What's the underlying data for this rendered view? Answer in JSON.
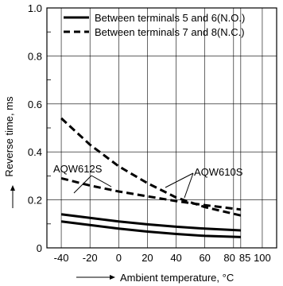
{
  "chart_data": {
    "type": "line",
    "xlabel": "Ambient temperature, °C",
    "ylabel": "Reverse time, ms",
    "xlim": [
      -50,
      110
    ],
    "ylim": [
      0,
      1.0
    ],
    "x_ticks": [
      -40,
      -20,
      0,
      20,
      40,
      60,
      80,
      85,
      100
    ],
    "x_tick_labels": [
      "-40",
      "-20",
      "0",
      "20",
      "40",
      "60",
      "80",
      "85",
      "100"
    ],
    "y_ticks": [
      0,
      0.2,
      0.4,
      0.6,
      0.8,
      1.0
    ],
    "y_tick_labels": [
      "0",
      "0.2",
      "0.4",
      "0.6",
      "0.8",
      "1.0"
    ],
    "grid": true,
    "legend_position": "top",
    "series": [
      {
        "name": "Between terminals 5 and 6(N.O.)",
        "style": "solid",
        "label": "AQW612S",
        "x": [
          -40,
          -20,
          0,
          20,
          40,
          60,
          85
        ],
        "y": [
          0.14,
          0.125,
          0.11,
          0.098,
          0.088,
          0.08,
          0.073
        ]
      },
      {
        "name": "Between terminals 5 and 6(N.O.)",
        "style": "solid",
        "label": "AQW610S",
        "x": [
          -40,
          -20,
          0,
          20,
          40,
          60,
          85
        ],
        "y": [
          0.11,
          0.095,
          0.08,
          0.068,
          0.058,
          0.05,
          0.045
        ]
      },
      {
        "name": "Between terminals 7 and 8(N.C.)",
        "style": "dashed",
        "label": "AQW612S",
        "x": [
          -40,
          -20,
          0,
          20,
          40,
          60,
          85
        ],
        "y": [
          0.29,
          0.26,
          0.235,
          0.215,
          0.195,
          0.178,
          0.16
        ]
      },
      {
        "name": "Between terminals 7 and 8(N.C.)",
        "style": "dashed",
        "label": "AQW610S",
        "x": [
          -40,
          -20,
          0,
          20,
          40,
          60,
          85
        ],
        "y": [
          0.54,
          0.43,
          0.34,
          0.27,
          0.21,
          0.17,
          0.135
        ]
      }
    ],
    "legend": [
      {
        "label": "Between terminals 5 and 6(N.O.)",
        "style": "solid"
      },
      {
        "label": "Between terminals 7 and 8(N.C.)",
        "style": "dashed"
      }
    ],
    "annotations": [
      {
        "text": "AQW612S"
      },
      {
        "text": "AQW610S"
      }
    ]
  }
}
